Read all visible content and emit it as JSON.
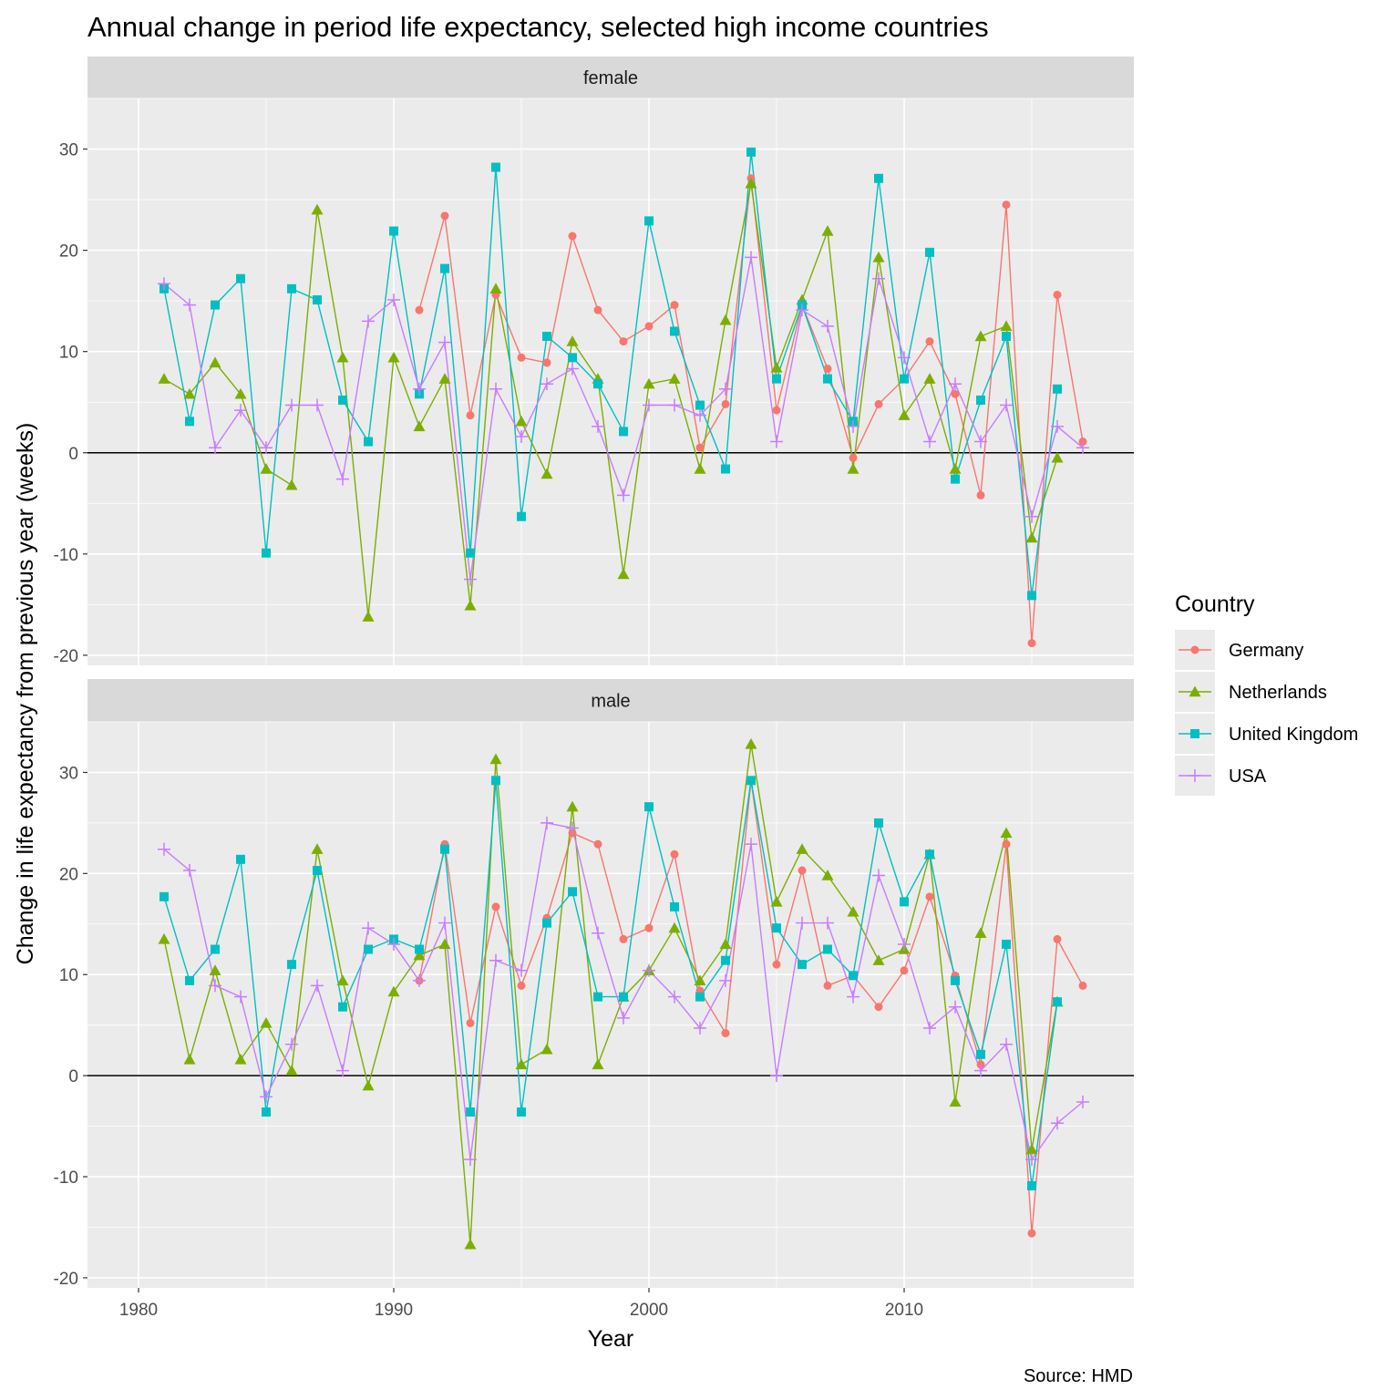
{
  "chart_data": {
    "type": "line",
    "title": "Annual change in period life expectancy, selected high income countries",
    "xlabel": "Year",
    "ylabel": "Change in life expectancy from previous year (weeks)",
    "caption": "Source: HMD",
    "xlim": [
      1978,
      2019
    ],
    "ylim": [
      -21,
      35
    ],
    "x_ticks": [
      1980,
      1990,
      2000,
      2010
    ],
    "y_ticks": [
      -20,
      -10,
      0,
      10,
      20,
      30
    ],
    "grid": true,
    "legend": {
      "title": "Country",
      "position": "right"
    },
    "series_styles": [
      {
        "name": "Germany",
        "color": "#F8766D",
        "shape": "circle"
      },
      {
        "name": "Netherlands",
        "color": "#7CAE00",
        "shape": "triangle"
      },
      {
        "name": "United Kingdom",
        "color": "#00BFC4",
        "shape": "square"
      },
      {
        "name": "USA",
        "color": "#C77CFF",
        "shape": "plus"
      }
    ],
    "panels": [
      {
        "label": "female",
        "series": [
          {
            "name": "Germany",
            "x": [
              1991,
              1992,
              1993,
              1994,
              1995,
              1996,
              1997,
              1998,
              1999,
              2000,
              2001,
              2002,
              2003,
              2004,
              2005,
              2006,
              2007,
              2008,
              2009,
              2010,
              2011,
              2012,
              2013,
              2014,
              2015,
              2016,
              2017
            ],
            "values": [
              14.1,
              23.4,
              3.7,
              15.6,
              9.4,
              8.9,
              21.4,
              14.1,
              11.0,
              12.5,
              14.6,
              0.5,
              4.8,
              27.1,
              4.2,
              14.6,
              8.3,
              -0.5,
              4.8,
              7.3,
              11.0,
              5.8,
              -4.2,
              24.5,
              -18.8,
              15.6,
              1.1
            ]
          },
          {
            "name": "Netherlands",
            "x": [
              1981,
              1982,
              1983,
              1984,
              1985,
              1986,
              1987,
              1988,
              1989,
              1990,
              1991,
              1992,
              1993,
              1994,
              1995,
              1996,
              1997,
              1998,
              1999,
              2000,
              2001,
              2002,
              2003,
              2004,
              2005,
              2006,
              2007,
              2008,
              2009,
              2010,
              2011,
              2012,
              2013,
              2014,
              2015,
              2016
            ],
            "values": [
              7.3,
              5.8,
              8.9,
              5.8,
              -1.6,
              -3.2,
              24.0,
              9.4,
              -16.2,
              9.4,
              2.6,
              7.3,
              -15.1,
              16.2,
              3.1,
              -2.1,
              11.0,
              7.3,
              -12.0,
              6.8,
              7.3,
              -1.6,
              13.1,
              26.6,
              8.4,
              15.1,
              21.9,
              -1.6,
              19.3,
              3.7,
              7.3,
              -1.6,
              11.5,
              12.5,
              -8.4,
              -0.5
            ]
          },
          {
            "name": "United Kingdom",
            "x": [
              1981,
              1982,
              1983,
              1984,
              1985,
              1986,
              1987,
              1988,
              1989,
              1990,
              1991,
              1992,
              1993,
              1994,
              1995,
              1996,
              1997,
              1998,
              1999,
              2000,
              2001,
              2002,
              2003,
              2004,
              2005,
              2006,
              2007,
              2008,
              2009,
              2010,
              2011,
              2012,
              2013,
              2014,
              2015,
              2016
            ],
            "values": [
              16.2,
              3.1,
              14.6,
              17.2,
              -9.9,
              16.2,
              15.1,
              5.2,
              1.1,
              21.9,
              5.8,
              18.2,
              -9.9,
              28.2,
              -6.3,
              11.5,
              9.4,
              6.8,
              2.1,
              22.9,
              12.0,
              4.7,
              -1.6,
              29.7,
              7.3,
              14.6,
              7.3,
              3.1,
              27.1,
              7.3,
              19.8,
              -2.6,
              5.2,
              11.5,
              -14.1,
              6.3
            ]
          },
          {
            "name": "USA",
            "x": [
              1981,
              1982,
              1983,
              1984,
              1985,
              1986,
              1987,
              1988,
              1989,
              1990,
              1991,
              1992,
              1993,
              1994,
              1995,
              1996,
              1997,
              1998,
              1999,
              2000,
              2001,
              2002,
              2003,
              2004,
              2005,
              2006,
              2007,
              2008,
              2009,
              2010,
              2011,
              2012,
              2013,
              2014,
              2015,
              2016,
              2017
            ],
            "values": [
              16.7,
              14.6,
              0.5,
              4.2,
              0.5,
              4.7,
              4.7,
              -2.6,
              13.0,
              15.1,
              6.3,
              10.9,
              -12.5,
              6.3,
              1.6,
              6.8,
              8.3,
              2.6,
              -4.2,
              4.7,
              4.7,
              3.7,
              6.3,
              19.3,
              1.1,
              14.1,
              12.5,
              2.6,
              17.2,
              9.4,
              1.1,
              6.8,
              1.1,
              4.7,
              -6.3,
              2.6,
              0.5
            ]
          }
        ]
      },
      {
        "label": "male",
        "series": [
          {
            "name": "Germany",
            "x": [
              1991,
              1992,
              1993,
              1994,
              1995,
              1996,
              1997,
              1998,
              1999,
              2000,
              2001,
              2002,
              2003,
              2004,
              2005,
              2006,
              2007,
              2008,
              2009,
              2010,
              2011,
              2012,
              2013,
              2014,
              2015,
              2016,
              2017
            ],
            "values": [
              9.4,
              22.9,
              5.2,
              16.7,
              8.9,
              15.6,
              24.0,
              22.9,
              13.5,
              14.6,
              21.9,
              8.4,
              4.2,
              29.2,
              11.0,
              20.3,
              8.9,
              9.9,
              6.8,
              10.4,
              17.7,
              9.9,
              1.1,
              22.9,
              -15.6,
              13.5,
              8.9
            ]
          },
          {
            "name": "Netherlands",
            "x": [
              1981,
              1982,
              1983,
              1984,
              1985,
              1986,
              1987,
              1988,
              1989,
              1990,
              1991,
              1992,
              1993,
              1994,
              1995,
              1996,
              1997,
              1998,
              1999,
              2000,
              2001,
              2002,
              2003,
              2004,
              2005,
              2006,
              2007,
              2008,
              2009,
              2010,
              2011,
              2012,
              2013,
              2014,
              2015,
              2016
            ],
            "values": [
              13.5,
              1.6,
              10.4,
              1.6,
              5.2,
              0.5,
              22.4,
              9.4,
              -1.0,
              8.3,
              11.9,
              13.0,
              -16.7,
              31.3,
              1.1,
              2.6,
              26.6,
              1.1,
              7.8,
              10.4,
              14.6,
              9.4,
              13.0,
              32.8,
              17.2,
              22.4,
              19.8,
              16.2,
              11.4,
              12.5,
              21.9,
              -2.6,
              14.1,
              24.0,
              -7.3,
              7.3
            ]
          },
          {
            "name": "United Kingdom",
            "x": [
              1981,
              1982,
              1983,
              1984,
              1985,
              1986,
              1987,
              1988,
              1989,
              1990,
              1991,
              1992,
              1993,
              1994,
              1995,
              1996,
              1997,
              1998,
              1999,
              2000,
              2001,
              2002,
              2003,
              2004,
              2005,
              2006,
              2007,
              2008,
              2009,
              2010,
              2011,
              2012,
              2013,
              2014,
              2015,
              2016
            ],
            "values": [
              17.7,
              9.4,
              12.5,
              21.4,
              -3.6,
              11.0,
              20.3,
              6.8,
              12.5,
              13.5,
              12.5,
              22.4,
              -3.6,
              29.2,
              -3.6,
              15.1,
              18.2,
              7.8,
              7.8,
              26.6,
              16.7,
              7.8,
              11.4,
              29.2,
              14.6,
              11.0,
              12.5,
              9.9,
              25.0,
              17.2,
              21.9,
              9.4,
              2.1,
              13.0,
              -10.9,
              7.3
            ]
          },
          {
            "name": "USA",
            "x": [
              1981,
              1982,
              1983,
              1984,
              1985,
              1986,
              1987,
              1988,
              1989,
              1990,
              1991,
              1992,
              1993,
              1994,
              1995,
              1996,
              1997,
              1998,
              1999,
              2000,
              2001,
              2002,
              2003,
              2004,
              2005,
              2006,
              2007,
              2008,
              2009,
              2010,
              2011,
              2012,
              2013,
              2014,
              2015,
              2016,
              2017
            ],
            "values": [
              22.4,
              20.3,
              8.9,
              7.8,
              -2.1,
              3.1,
              8.9,
              0.5,
              14.6,
              13.0,
              9.4,
              15.1,
              -8.3,
              11.4,
              10.4,
              25.0,
              24.5,
              14.1,
              5.7,
              10.4,
              7.8,
              4.7,
              9.4,
              22.9,
              0.0,
              15.1,
              15.1,
              7.8,
              19.8,
              13.0,
              4.7,
              6.8,
              0.5,
              3.1,
              -8.3,
              -4.7,
              -2.6
            ]
          }
        ]
      }
    ]
  }
}
